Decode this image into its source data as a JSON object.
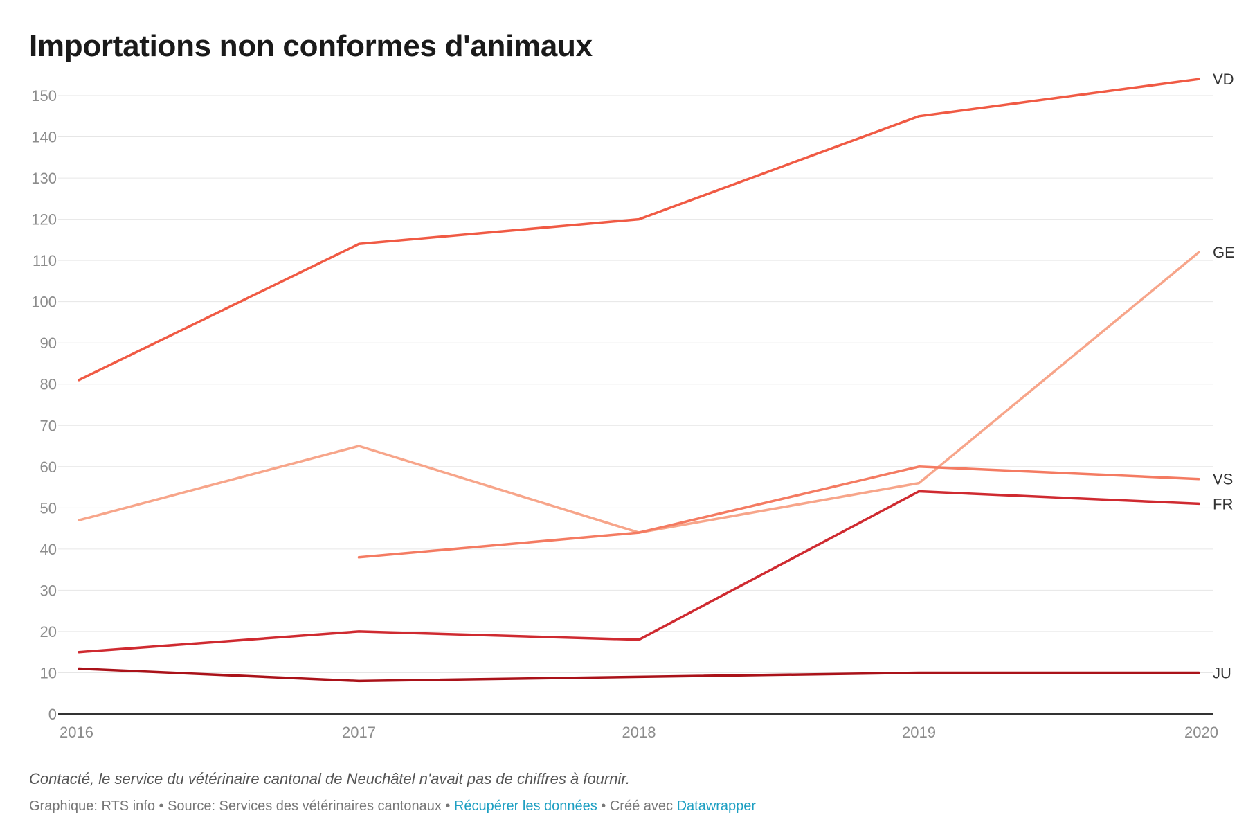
{
  "title": "Importations non conformes d'animaux",
  "note": "Contacté, le service du vétérinaire cantonal de Neuchâtel n'avait pas de chiffres à fournir.",
  "footer": {
    "prefix": "Graphique: RTS info • Source: Services des vétérinaires cantonaux • ",
    "data_link": "Récupérer les données",
    "middle": " • Créé avec ",
    "tool_link": "Datawrapper",
    "link_color": "#1d9fc2"
  },
  "chart_data": {
    "type": "line",
    "title": "Importations non conformes d'animaux",
    "x": [
      "2016",
      "2017",
      "2018",
      "2019",
      "2020"
    ],
    "ylim": [
      0,
      150
    ],
    "yticks": [
      0,
      10,
      20,
      30,
      40,
      50,
      60,
      70,
      80,
      90,
      100,
      110,
      120,
      130,
      140,
      150
    ],
    "grid": true,
    "legend": "direct labels at line ends",
    "series": [
      {
        "name": "VD",
        "color": "#f05a44",
        "values": [
          81,
          114,
          120,
          145,
          154
        ]
      },
      {
        "name": "GE",
        "color": "#f7a58a",
        "values": [
          47,
          65,
          44,
          56,
          112
        ]
      },
      {
        "name": "VS",
        "color": "#f47b62",
        "values": [
          null,
          38,
          44,
          60,
          57
        ]
      },
      {
        "name": "FR",
        "color": "#cf2a30",
        "values": [
          15,
          20,
          18,
          54,
          51
        ]
      },
      {
        "name": "JU",
        "color": "#aa1219",
        "values": [
          11,
          8,
          9,
          10,
          10
        ]
      }
    ]
  }
}
